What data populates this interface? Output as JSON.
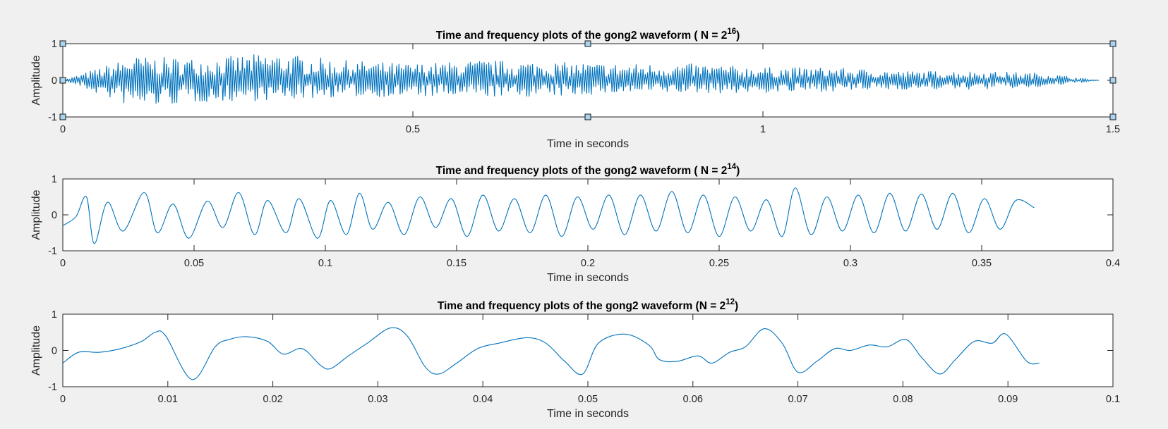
{
  "chart_data": [
    {
      "type": "line",
      "title": "Time and frequency plots of the gong2 waveform ( N = 2",
      "title_exponent": "16",
      "title_suffix": ")",
      "xlabel": "Time in seconds",
      "ylabel": "Amplitude",
      "xlim": [
        0,
        1.5
      ],
      "ylim": [
        -1,
        1
      ],
      "xticks": [
        0,
        0.5,
        1,
        1.5
      ],
      "xtick_labels": [
        "0",
        "0.5",
        "1",
        "1.5"
      ],
      "yticks": [
        -1,
        0,
        1
      ],
      "ytick_labels": [
        "-1",
        "0",
        "1"
      ],
      "grid": false,
      "selected": true,
      "series": [
        {
          "color": "#0072bd",
          "x": [
            0,
            0.1,
            0.2,
            0.3,
            0.4,
            0.5,
            0.6,
            0.7,
            0.8,
            0.9,
            1.0,
            1.1,
            1.2,
            1.3,
            1.4,
            1.48
          ],
          "y": [
            0.0,
            0.65,
            0.6,
            0.75,
            0.55,
            0.45,
            0.55,
            0.5,
            0.45,
            0.45,
            0.35,
            0.35,
            0.25,
            0.25,
            0.2,
            0.0
          ],
          "y_min": [
            0.0,
            -0.75,
            -0.6,
            -0.55,
            -0.45,
            -0.45,
            -0.45,
            -0.45,
            -0.35,
            -0.35,
            -0.35,
            -0.3,
            -0.25,
            -0.25,
            -0.2,
            0.0
          ]
        }
      ]
    },
    {
      "type": "line",
      "title": "Time and frequency plots of the gong2 waveform ( N = 2",
      "title_exponent": "14",
      "title_suffix": ")",
      "xlabel": "Time in seconds",
      "ylabel": "Amplitude",
      "xlim": [
        0,
        0.4
      ],
      "ylim": [
        -1,
        1
      ],
      "xticks": [
        0,
        0.05,
        0.1,
        0.15,
        0.2,
        0.25,
        0.3,
        0.35,
        0.4
      ],
      "xtick_labels": [
        "0",
        "0.05",
        "0.1",
        "0.15",
        "0.2",
        "0.25",
        "0.3",
        "0.35",
        "0.4"
      ],
      "yticks": [
        -1,
        0,
        1
      ],
      "ytick_labels": [
        "-1",
        "0",
        "1"
      ],
      "grid": false,
      "selected": false,
      "series": [
        {
          "color": "#0072bd",
          "x": [
            0,
            0.005,
            0.009,
            0.012,
            0.017,
            0.023,
            0.031,
            0.036,
            0.042,
            0.048,
            0.055,
            0.061,
            0.067,
            0.073,
            0.078,
            0.085,
            0.09,
            0.097,
            0.102,
            0.108,
            0.113,
            0.118,
            0.124,
            0.13,
            0.136,
            0.142,
            0.148,
            0.154,
            0.16,
            0.166,
            0.172,
            0.178,
            0.184,
            0.19,
            0.196,
            0.202,
            0.208,
            0.214,
            0.22,
            0.226,
            0.232,
            0.238,
            0.244,
            0.25,
            0.256,
            0.262,
            0.268,
            0.274,
            0.279,
            0.285,
            0.291,
            0.297,
            0.303,
            0.309,
            0.315,
            0.321,
            0.327,
            0.333,
            0.339,
            0.345,
            0.351,
            0.357,
            0.363,
            0.37
          ],
          "y": [
            -0.3,
            -0.05,
            0.5,
            -0.8,
            0.35,
            -0.45,
            0.62,
            -0.5,
            0.3,
            -0.65,
            0.38,
            -0.35,
            0.62,
            -0.55,
            0.4,
            -0.5,
            0.45,
            -0.65,
            0.4,
            -0.55,
            0.6,
            -0.4,
            0.35,
            -0.55,
            0.5,
            -0.35,
            0.45,
            -0.6,
            0.55,
            -0.45,
            0.45,
            -0.5,
            0.55,
            -0.6,
            0.5,
            -0.4,
            0.55,
            -0.55,
            0.55,
            -0.45,
            0.65,
            -0.5,
            0.55,
            -0.6,
            0.5,
            -0.45,
            0.42,
            -0.6,
            0.75,
            -0.55,
            0.5,
            -0.45,
            0.55,
            -0.5,
            0.6,
            -0.45,
            0.58,
            -0.4,
            0.6,
            -0.5,
            0.45,
            -0.4,
            0.4,
            0.2
          ]
        }
      ]
    },
    {
      "type": "line",
      "title": "Time and frequency plots of the gong2 waveform (N = 2",
      "title_exponent": "12",
      "title_suffix": ")",
      "xlabel": "Time in seconds",
      "ylabel": "Amplitude",
      "xlim": [
        0,
        0.1
      ],
      "ylim": [
        -1,
        1
      ],
      "xticks": [
        0,
        0.01,
        0.02,
        0.03,
        0.04,
        0.05,
        0.06,
        0.07,
        0.08,
        0.09,
        0.1
      ],
      "xtick_labels": [
        "0",
        "0.01",
        "0.02",
        "0.03",
        "0.04",
        "0.05",
        "0.06",
        "0.07",
        "0.08",
        "0.09",
        "0.1"
      ],
      "yticks": [
        -1,
        0,
        1
      ],
      "ytick_labels": [
        "-1",
        "0",
        "1"
      ],
      "grid": false,
      "selected": false,
      "series": [
        {
          "color": "#0072bd",
          "x": [
            0,
            0.0015,
            0.0035,
            0.0055,
            0.0075,
            0.0088,
            0.0098,
            0.0123,
            0.0145,
            0.0158,
            0.0175,
            0.0195,
            0.021,
            0.0228,
            0.0245,
            0.0255,
            0.0272,
            0.029,
            0.0312,
            0.0328,
            0.0345,
            0.0358,
            0.0375,
            0.0395,
            0.0415,
            0.0442,
            0.046,
            0.0478,
            0.0495,
            0.051,
            0.0535,
            0.0558,
            0.0568,
            0.0585,
            0.0605,
            0.0618,
            0.0635,
            0.065,
            0.0668,
            0.0685,
            0.07,
            0.0718,
            0.0735,
            0.075,
            0.0768,
            0.0785,
            0.0803,
            0.0818,
            0.0835,
            0.085,
            0.0868,
            0.0885,
            0.0898,
            0.0918,
            0.093
          ],
          "y": [
            -0.35,
            -0.05,
            -0.05,
            0.05,
            0.25,
            0.5,
            0.4,
            -0.8,
            0.1,
            0.3,
            0.38,
            0.25,
            -0.1,
            0.05,
            -0.4,
            -0.5,
            -0.15,
            0.2,
            0.62,
            0.4,
            -0.45,
            -0.65,
            -0.35,
            0.05,
            0.2,
            0.35,
            0.2,
            -0.3,
            -0.65,
            0.2,
            0.45,
            0.15,
            -0.25,
            -0.3,
            -0.15,
            -0.35,
            -0.05,
            0.1,
            0.6,
            0.2,
            -0.6,
            -0.3,
            0.05,
            0.0,
            0.15,
            0.1,
            0.3,
            -0.2,
            -0.65,
            -0.25,
            0.25,
            0.2,
            0.45,
            -0.3,
            -0.35
          ]
        }
      ]
    }
  ]
}
